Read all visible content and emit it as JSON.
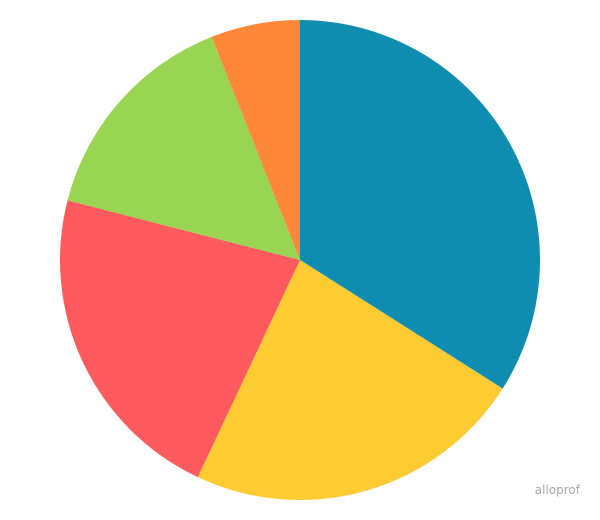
{
  "chart_data": {
    "type": "pie",
    "categories": [
      null,
      null,
      null,
      null,
      null
    ],
    "values": [
      34,
      23,
      22,
      15,
      6
    ],
    "colors": [
      "#0f8db0",
      "#ffcb33",
      "#ff5a5e",
      "#99d552",
      "#ff873a"
    ],
    "watermark": "alloprof"
  }
}
